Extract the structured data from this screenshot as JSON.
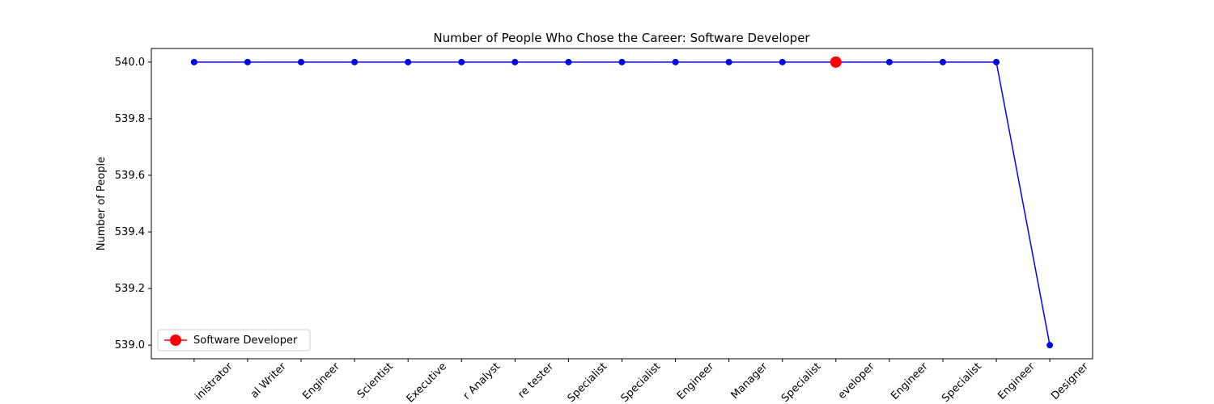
{
  "chart_data": {
    "type": "line",
    "title": "Number of People Who Chose the Career: Software Developer",
    "y_label": "Number of People",
    "categories": [
      "inistrator",
      "al Writer",
      "Engineer",
      "Scientist",
      "Executive",
      "r Analyst",
      "re tester",
      "Specialist",
      "Specialist",
      "Engineer",
      "Manager",
      "Specialist",
      "eveloper",
      "Engineer",
      "Specialist",
      "Engineer",
      "Designer"
    ],
    "values": [
      540,
      540,
      540,
      540,
      540,
      540,
      540,
      540,
      540,
      540,
      540,
      540,
      540,
      540,
      540,
      540,
      539
    ],
    "color": "#0000ff",
    "highlight": {
      "name": "Software Developer",
      "index": 12,
      "color": "#ff0000"
    },
    "ylim": [
      538.952,
      540.048
    ],
    "yticks": [
      {
        "value": 539.0,
        "label": "539.0"
      },
      {
        "value": 539.2,
        "label": "539.2"
      },
      {
        "value": 539.4,
        "label": "539.4"
      },
      {
        "value": 539.6,
        "label": "539.6"
      },
      {
        "value": 539.8,
        "label": "539.8"
      },
      {
        "value": 540.0,
        "label": "540.0"
      }
    ],
    "legend": "lower left"
  }
}
